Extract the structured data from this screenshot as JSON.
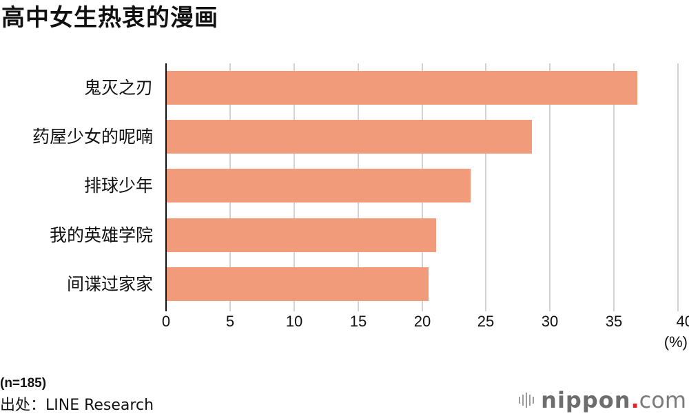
{
  "title": "高中女生热衷的漫画",
  "chart_data": {
    "type": "bar",
    "orientation": "horizontal",
    "title": "高中女生热衷的漫画",
    "categories": [
      "鬼灭之刃",
      "药屋少女的呢喃",
      "排球少年",
      "我的英雄学院",
      "间谍过家家"
    ],
    "values": [
      36.8,
      28.6,
      23.8,
      21.1,
      20.5
    ],
    "xlabel": "(%)",
    "ylabel": "",
    "xlim": [
      0,
      40
    ],
    "xticks": [
      "0",
      "5",
      "10",
      "15",
      "20",
      "25",
      "30",
      "35",
      "40"
    ],
    "grid": true,
    "bar_color": "#f19b7b",
    "legend": null
  },
  "axis": {
    "unit": "(%)",
    "ticks": [
      "0",
      "5",
      "10",
      "15",
      "20",
      "25",
      "30",
      "35",
      "40"
    ]
  },
  "footer": {
    "sample": "(n=185)",
    "source": "出处：LINE Research"
  },
  "logo": {
    "brand": "nippon",
    "dot": ".",
    "tld": "com"
  }
}
